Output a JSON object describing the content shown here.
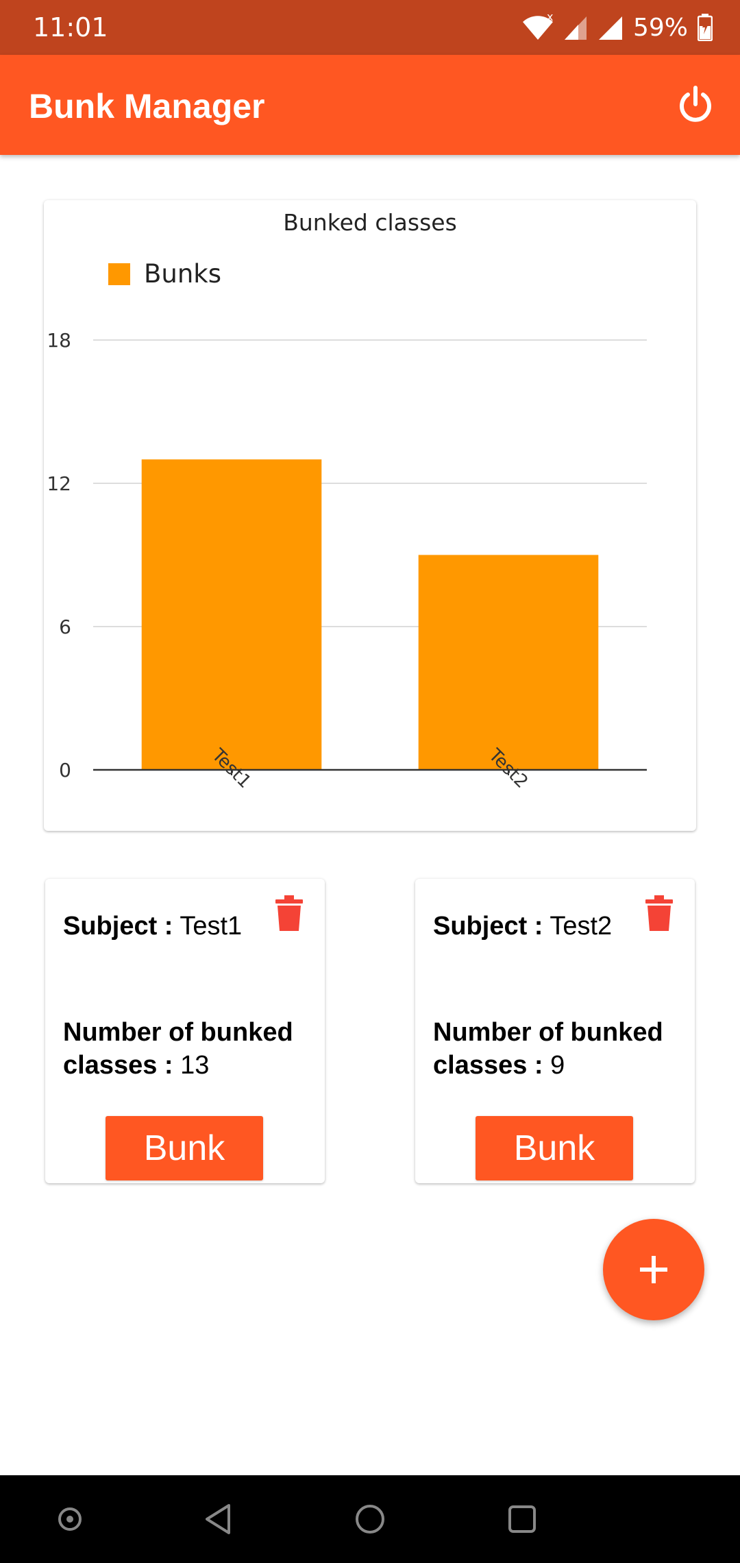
{
  "status_bar": {
    "time": "11:01",
    "battery": "59%",
    "icons": [
      "wifi-icon",
      "signal-icon",
      "signal-icon",
      "battery-icon"
    ]
  },
  "app_bar": {
    "title": "Bunk Manager",
    "action_icon": "power-icon"
  },
  "chart_data": {
    "type": "bar",
    "title": "Bunked classes",
    "categories": [
      "Test1",
      "Test2"
    ],
    "series": [
      {
        "name": "Bunks",
        "values": [
          13,
          9
        ]
      }
    ],
    "yticks": [
      "0",
      "6",
      "12",
      "18"
    ],
    "ylim": [
      0,
      18
    ],
    "grid": true,
    "legend": "top-left",
    "color": "#FF9800"
  },
  "subjects": [
    {
      "subject_label": "Subject :",
      "subject_value": "Test1",
      "count_label": "Number of bunked classes :",
      "count_value": "13",
      "button_label": "Bunk",
      "delete_icon": "trash-icon"
    },
    {
      "subject_label": "Subject :",
      "subject_value": "Test2",
      "count_label": "Number of bunked classes :",
      "count_value": "9",
      "button_label": "Bunk",
      "delete_icon": "trash-icon"
    }
  ],
  "fab": {
    "icon": "plus-icon"
  },
  "colors": {
    "status_bar": "#BF441E",
    "primary": "#FF5722",
    "bar": "#FF9800",
    "delete": "#F44336"
  },
  "nav_bar": {
    "icons": [
      "assistant-icon",
      "back-icon",
      "home-icon",
      "recents-icon"
    ]
  }
}
